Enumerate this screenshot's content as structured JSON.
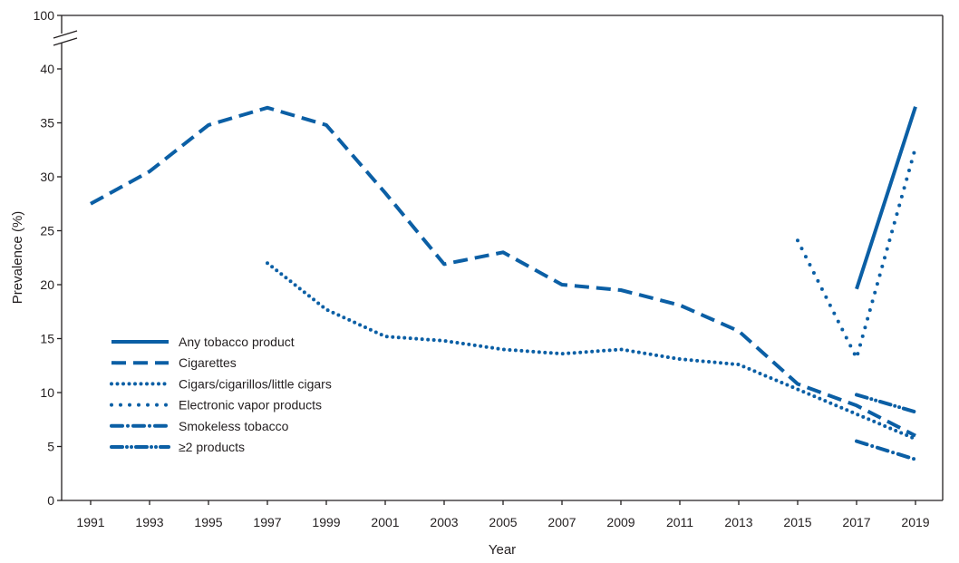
{
  "chart_data": {
    "type": "line",
    "title": "",
    "xlabel": "Year",
    "ylabel": "Prevalence (%)",
    "ylim": [
      0,
      40
    ],
    "y_break_top_label": "100",
    "yticks": [
      0,
      5,
      10,
      15,
      20,
      25,
      30,
      35,
      40
    ],
    "x": [
      1991,
      1993,
      1995,
      1997,
      1999,
      2001,
      2003,
      2005,
      2007,
      2009,
      2011,
      2013,
      2015,
      2017,
      2019
    ],
    "grid": false,
    "legend_position": "left",
    "series": [
      {
        "name": "Any tobacco product",
        "style": "solid",
        "color": "#0b5fa5",
        "points": [
          [
            2017,
            19.6
          ],
          [
            2019,
            36.5
          ]
        ]
      },
      {
        "name": "Cigarettes",
        "style": "dashed",
        "color": "#0b5fa5",
        "points": [
          [
            1991,
            27.5
          ],
          [
            1993,
            30.5
          ],
          [
            1995,
            34.8
          ],
          [
            1997,
            36.4
          ],
          [
            1999,
            34.8
          ],
          [
            2001,
            28.5
          ],
          [
            2003,
            21.9
          ],
          [
            2005,
            23.0
          ],
          [
            2007,
            20.0
          ],
          [
            2009,
            19.5
          ],
          [
            2011,
            18.1
          ],
          [
            2013,
            15.7
          ],
          [
            2015,
            10.8
          ],
          [
            2017,
            8.8
          ],
          [
            2019,
            6.0
          ]
        ]
      },
      {
        "name": "Cigars/cigarillos/little cigars",
        "style": "dotted",
        "color": "#0b5fa5",
        "points": [
          [
            1997,
            22.0
          ],
          [
            1999,
            17.7
          ],
          [
            2001,
            15.2
          ],
          [
            2003,
            14.8
          ],
          [
            2005,
            14.0
          ],
          [
            2007,
            13.6
          ],
          [
            2009,
            14.0
          ],
          [
            2011,
            13.1
          ],
          [
            2013,
            12.6
          ],
          [
            2015,
            10.3
          ],
          [
            2017,
            8.0
          ],
          [
            2019,
            5.7
          ]
        ]
      },
      {
        "name": "Electronic vapor products",
        "style": "sparse-dotted",
        "color": "#0b5fa5",
        "points": [
          [
            2015,
            24.1
          ],
          [
            2017,
            13.2
          ],
          [
            2019,
            32.7
          ]
        ]
      },
      {
        "name": "Smokeless tobacco",
        "style": "dash-dot",
        "color": "#0b5fa5",
        "points": [
          [
            2017,
            5.5
          ],
          [
            2019,
            3.8
          ]
        ]
      },
      {
        "name": "≥2 products",
        "style": "dash-dot-dot",
        "color": "#0b5fa5",
        "points": [
          [
            2017,
            9.8
          ],
          [
            2019,
            8.2
          ]
        ]
      }
    ]
  }
}
